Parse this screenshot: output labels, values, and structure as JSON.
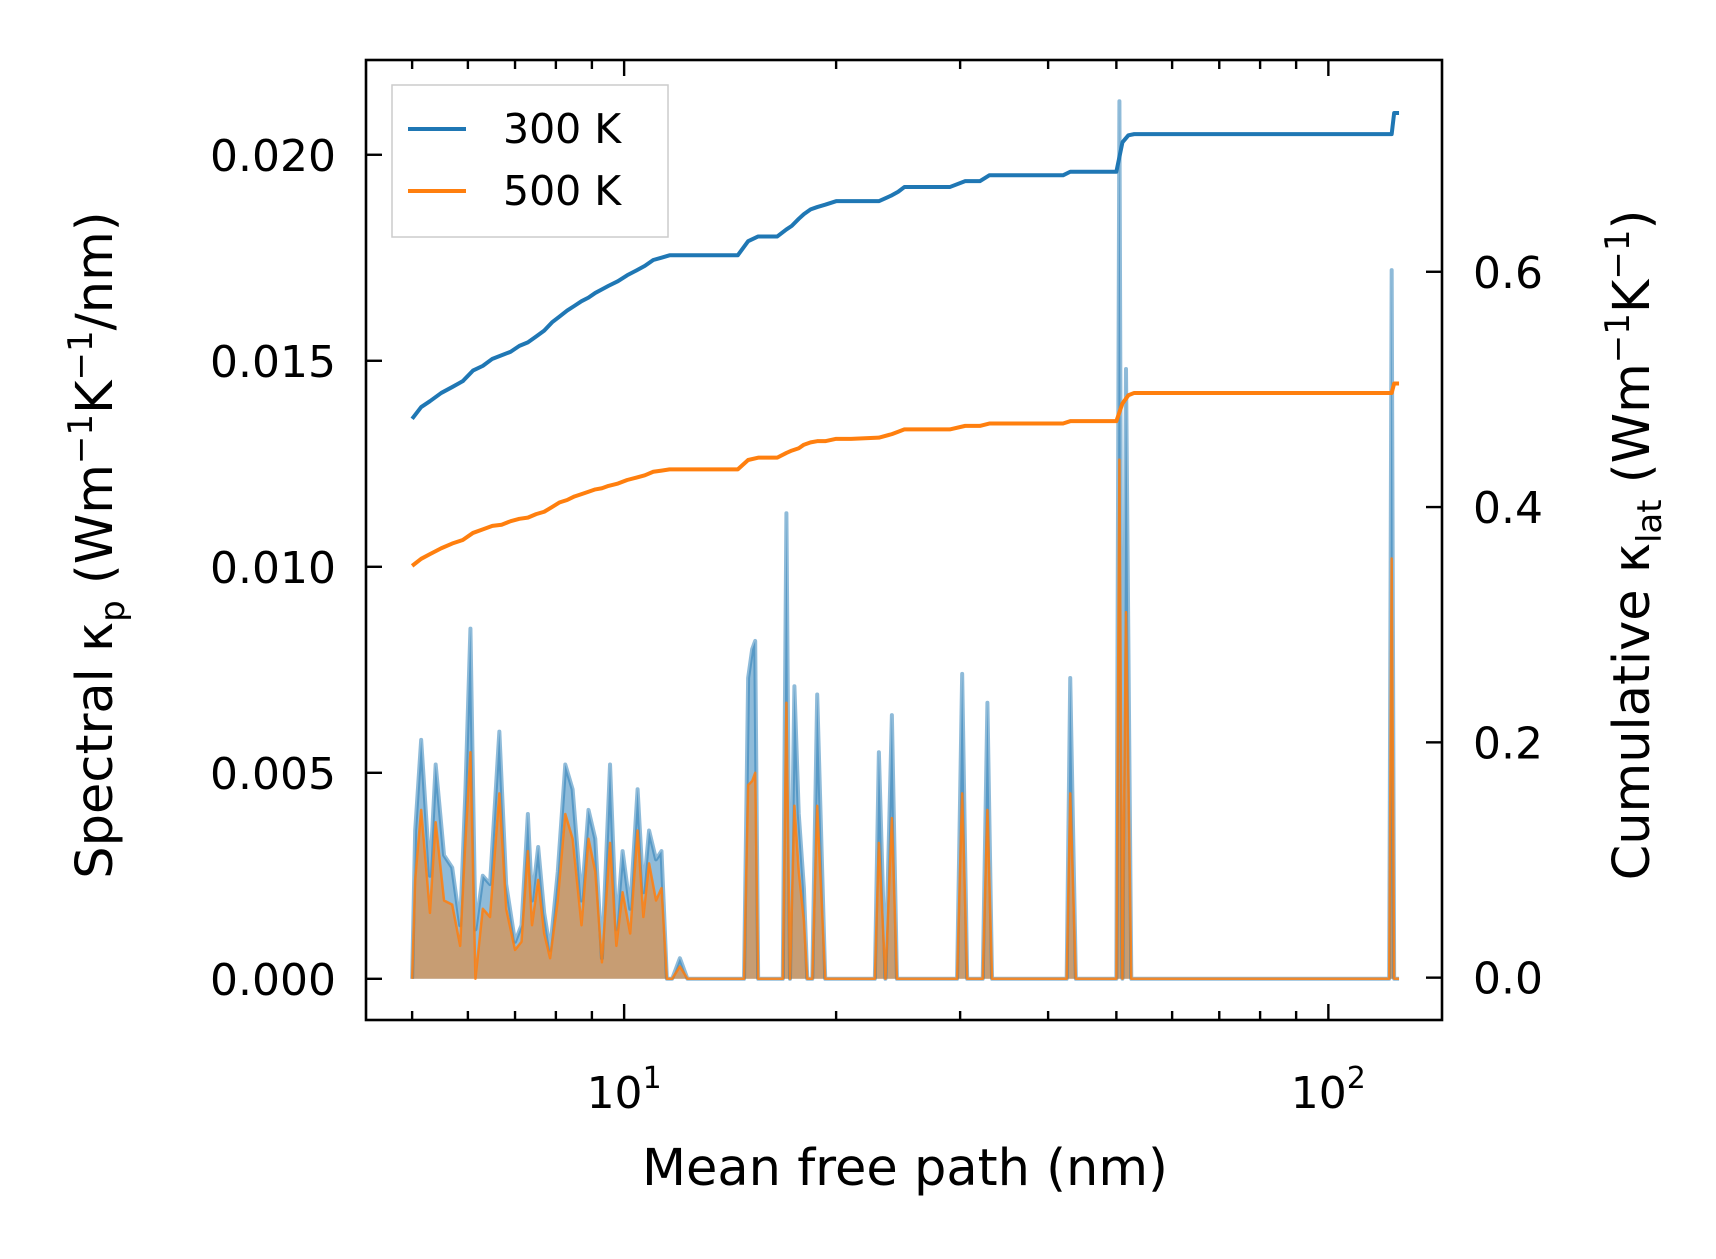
{
  "chart_data": {
    "type": "line+area",
    "xscale": "log",
    "xlabel": "Mean free path (nm)",
    "xlim": [
      4.3,
      145
    ],
    "xticks_major": [
      {
        "value": 10,
        "base": "10",
        "exp": "1"
      },
      {
        "value": 100,
        "base": "10",
        "exp": "2"
      }
    ],
    "left_axis": {
      "label_prefix": "Spectral κ",
      "label_sub": "p",
      "label_units": {
        "p1": " (Wm",
        "s1": "−1",
        "p2": "K",
        "s2": "−1",
        "p3": "/nm)"
      },
      "ylim": [
        -0.001,
        0.0223
      ],
      "ticks": [
        {
          "value": 0.0,
          "label": "0.000"
        },
        {
          "value": 0.005,
          "label": "0.005"
        },
        {
          "value": 0.01,
          "label": "0.010"
        },
        {
          "value": 0.015,
          "label": "0.015"
        },
        {
          "value": 0.02,
          "label": "0.020"
        }
      ]
    },
    "right_axis": {
      "label_prefix": "Cumulative κ",
      "label_sub": "lat",
      "label_units": {
        "p1": " (Wm",
        "s1": "−1",
        "p2": "K",
        "s2": "−1",
        "p3": ")"
      },
      "ylim": [
        -0.036,
        0.78
      ],
      "ticks": [
        {
          "value": 0.0,
          "label": "0.0"
        },
        {
          "value": 0.2,
          "label": "0.2"
        },
        {
          "value": 0.4,
          "label": "0.4"
        },
        {
          "value": 0.6,
          "label": "0.6"
        }
      ]
    },
    "legend": {
      "location": "upper-left",
      "entries": [
        {
          "name": "300 K",
          "color": "#1f77b4"
        },
        {
          "name": "500 K",
          "color": "#ff7f0e"
        }
      ]
    },
    "spectral_series": [
      {
        "name": "300 K",
        "color": "#1f77b4",
        "x": [
          5.0,
          5.05,
          5.15,
          5.3,
          5.4,
          5.55,
          5.7,
          5.85,
          5.95,
          6.05,
          6.15,
          6.3,
          6.45,
          6.65,
          6.8,
          7.0,
          7.15,
          7.3,
          7.4,
          7.55,
          7.7,
          7.85,
          8.05,
          8.25,
          8.45,
          8.7,
          8.9,
          9.1,
          9.3,
          9.55,
          9.75,
          9.95,
          10.2,
          10.45,
          10.65,
          10.85,
          11.1,
          11.3,
          11.5,
          11.7,
          12.0,
          12.3,
          12.55,
          12.8,
          13.0,
          14.8,
          15.0,
          15.2,
          15.35,
          15.5,
          16.8,
          17.0,
          17.2,
          17.45,
          17.7,
          18.0,
          18.2,
          18.5,
          18.8,
          19.3,
          19.6,
          19.9,
          20.2,
          20.6,
          22.7,
          23.0,
          23.5,
          24.0,
          24.4,
          24.8,
          25.4,
          29.7,
          30.2,
          30.7,
          31.3,
          32.3,
          32.8,
          33.3,
          33.9,
          42.5,
          43.0,
          43.8,
          44.5,
          45.2,
          50.0,
          50.5,
          51.0,
          51.6,
          52.5,
          53.2,
          53.9,
          54.6,
          122.0,
          123.0,
          124.0,
          125.0,
          126.0
        ],
        "values": [
          0.0,
          0.0036,
          0.0058,
          0.0025,
          0.0052,
          0.003,
          0.0027,
          0.0013,
          0.0045,
          0.0085,
          0.0012,
          0.0025,
          0.0023,
          0.006,
          0.0023,
          0.0009,
          0.0013,
          0.004,
          0.0019,
          0.0032,
          0.0016,
          0.0007,
          0.0026,
          0.0052,
          0.0046,
          0.0019,
          0.0041,
          0.0034,
          0.0005,
          0.0052,
          0.0012,
          0.0031,
          0.0017,
          0.0046,
          0.0021,
          0.0036,
          0.0029,
          0.0031,
          0.0,
          0.0,
          0.0005,
          0.0,
          0.0,
          0.0,
          0.0,
          0.0,
          0.0073,
          0.008,
          0.0082,
          0.0,
          0.0,
          0.0113,
          0.0,
          0.0071,
          0.004,
          0.0022,
          0.0,
          0.0,
          0.0069,
          0.0,
          0.0,
          0.0,
          0.0,
          0.0,
          0.0,
          0.0055,
          0.0,
          0.0064,
          0.0,
          0.0,
          0.0,
          0.0,
          0.0074,
          0.0,
          0.0,
          0.0,
          0.0067,
          0.0,
          0.0,
          0.0,
          0.0073,
          0.0,
          0.0,
          0.0,
          0.0,
          0.0213,
          0.0,
          0.0148,
          0.0,
          0.0,
          0.0,
          0.0,
          0.0,
          0.0172,
          0.0,
          0.0,
          0.0
        ]
      },
      {
        "name": "500 K",
        "color": "#ff7f0e",
        "x": [
          5.0,
          5.05,
          5.15,
          5.3,
          5.4,
          5.55,
          5.7,
          5.85,
          5.95,
          6.05,
          6.15,
          6.3,
          6.45,
          6.65,
          6.8,
          7.0,
          7.15,
          7.3,
          7.4,
          7.55,
          7.7,
          7.85,
          8.05,
          8.25,
          8.45,
          8.7,
          8.9,
          9.1,
          9.3,
          9.55,
          9.75,
          9.95,
          10.2,
          10.45,
          10.65,
          10.85,
          11.1,
          11.3,
          11.5,
          11.7,
          12.0,
          12.3,
          12.55,
          12.8,
          13.0,
          14.8,
          15.0,
          15.2,
          15.35,
          15.5,
          16.8,
          17.0,
          17.2,
          17.45,
          17.7,
          18.0,
          18.2,
          18.5,
          18.8,
          19.3,
          19.6,
          19.9,
          20.2,
          20.6,
          22.7,
          23.0,
          23.5,
          24.0,
          24.4,
          24.8,
          25.4,
          29.7,
          30.2,
          30.7,
          31.3,
          32.3,
          32.8,
          33.3,
          33.9,
          42.5,
          43.0,
          43.8,
          44.5,
          45.2,
          50.0,
          50.5,
          51.0,
          51.6,
          52.5,
          53.2,
          53.9,
          54.6,
          122.0,
          123.0,
          124.0,
          125.0,
          126.0
        ],
        "values": [
          0.0,
          0.0024,
          0.0041,
          0.0016,
          0.0038,
          0.0019,
          0.0018,
          0.0008,
          0.0033,
          0.0055,
          0.0,
          0.0017,
          0.0015,
          0.0045,
          0.0017,
          0.0007,
          0.0009,
          0.0031,
          0.0013,
          0.0024,
          0.0011,
          0.0005,
          0.0019,
          0.004,
          0.0034,
          0.0013,
          0.0034,
          0.0026,
          0.0004,
          0.0033,
          0.0008,
          0.0021,
          0.0011,
          0.0036,
          0.0015,
          0.0028,
          0.0019,
          0.0022,
          0.0,
          0.0,
          0.0003,
          0.0,
          0.0,
          0.0,
          0.0,
          0.0,
          0.0047,
          0.0048,
          0.005,
          0.0,
          0.0,
          0.0067,
          0.0,
          0.0042,
          0.0026,
          0.0014,
          0.0,
          0.0,
          0.0042,
          0.0,
          0.0,
          0.0,
          0.0,
          0.0,
          0.0,
          0.0033,
          0.0,
          0.0039,
          0.0,
          0.0,
          0.0,
          0.0,
          0.0045,
          0.0,
          0.0,
          0.0,
          0.0041,
          0.0,
          0.0,
          0.0,
          0.0045,
          0.0,
          0.0,
          0.0,
          0.0,
          0.0126,
          0.0,
          0.0089,
          0.0,
          0.0,
          0.0,
          0.0,
          0.0,
          0.0102,
          0.0,
          0.0,
          0.0
        ]
      }
    ],
    "cumulative_series": [
      {
        "name": "300 K",
        "color": "#1f77b4",
        "x": [
          5.0,
          5.15,
          5.3,
          5.5,
          5.7,
          5.9,
          6.1,
          6.3,
          6.5,
          6.7,
          6.9,
          7.1,
          7.3,
          7.5,
          7.7,
          7.9,
          8.1,
          8.3,
          8.5,
          8.7,
          8.9,
          9.1,
          9.3,
          9.5,
          9.8,
          10.1,
          10.4,
          10.7,
          11.0,
          11.3,
          11.6,
          11.9,
          12.2,
          12.6,
          13.0,
          14.5,
          15.0,
          15.5,
          16.5,
          17.0,
          17.3,
          17.7,
          18.0,
          18.4,
          18.8,
          19.3,
          20.0,
          21.0,
          23.0,
          24.0,
          24.5,
          25.0,
          27.0,
          29.0,
          30.5,
          32.0,
          33.0,
          35.0,
          40.0,
          42.0,
          43.0,
          45.0,
          50.0,
          51.0,
          52.0,
          53.0,
          54.0,
          60.0,
          80.0,
          100.0,
          123.0,
          124.0,
          126.0
        ],
        "values": [
          0.475,
          0.485,
          0.49,
          0.497,
          0.502,
          0.507,
          0.516,
          0.52,
          0.526,
          0.529,
          0.532,
          0.537,
          0.54,
          0.545,
          0.55,
          0.557,
          0.562,
          0.567,
          0.571,
          0.575,
          0.578,
          0.582,
          0.585,
          0.588,
          0.592,
          0.597,
          0.601,
          0.605,
          0.61,
          0.612,
          0.614,
          0.614,
          0.614,
          0.614,
          0.614,
          0.614,
          0.626,
          0.63,
          0.63,
          0.636,
          0.639,
          0.645,
          0.649,
          0.653,
          0.655,
          0.657,
          0.66,
          0.66,
          0.66,
          0.665,
          0.668,
          0.672,
          0.672,
          0.672,
          0.677,
          0.677,
          0.682,
          0.682,
          0.682,
          0.682,
          0.685,
          0.685,
          0.685,
          0.71,
          0.716,
          0.717,
          0.717,
          0.717,
          0.717,
          0.717,
          0.717,
          0.735,
          0.735
        ]
      },
      {
        "name": "500 K",
        "color": "#ff7f0e",
        "x": [
          5.0,
          5.15,
          5.3,
          5.5,
          5.7,
          5.9,
          6.1,
          6.3,
          6.5,
          6.7,
          6.9,
          7.1,
          7.3,
          7.5,
          7.7,
          7.9,
          8.1,
          8.3,
          8.5,
          8.7,
          8.9,
          9.1,
          9.3,
          9.5,
          9.8,
          10.1,
          10.4,
          10.7,
          11.0,
          11.3,
          11.6,
          11.9,
          12.2,
          12.6,
          13.0,
          14.5,
          15.0,
          15.5,
          16.5,
          17.0,
          17.3,
          17.7,
          18.0,
          18.4,
          18.8,
          19.3,
          20.0,
          21.0,
          23.0,
          24.0,
          24.5,
          25.0,
          27.0,
          29.0,
          30.5,
          32.0,
          33.0,
          35.0,
          40.0,
          42.0,
          43.0,
          45.0,
          50.0,
          51.0,
          52.0,
          53.0,
          54.0,
          60.0,
          80.0,
          100.0,
          123.0,
          124.0,
          126.0
        ],
        "values": [
          0.35,
          0.356,
          0.36,
          0.365,
          0.369,
          0.372,
          0.378,
          0.381,
          0.384,
          0.385,
          0.388,
          0.39,
          0.391,
          0.394,
          0.396,
          0.4,
          0.404,
          0.406,
          0.409,
          0.411,
          0.413,
          0.415,
          0.416,
          0.418,
          0.42,
          0.423,
          0.425,
          0.427,
          0.43,
          0.431,
          0.432,
          0.432,
          0.432,
          0.432,
          0.432,
          0.432,
          0.44,
          0.442,
          0.442,
          0.446,
          0.448,
          0.45,
          0.453,
          0.455,
          0.456,
          0.456,
          0.458,
          0.458,
          0.459,
          0.462,
          0.464,
          0.466,
          0.466,
          0.466,
          0.469,
          0.469,
          0.471,
          0.471,
          0.471,
          0.471,
          0.473,
          0.473,
          0.473,
          0.488,
          0.495,
          0.497,
          0.497,
          0.497,
          0.497,
          0.497,
          0.497,
          0.505,
          0.505
        ]
      }
    ]
  }
}
